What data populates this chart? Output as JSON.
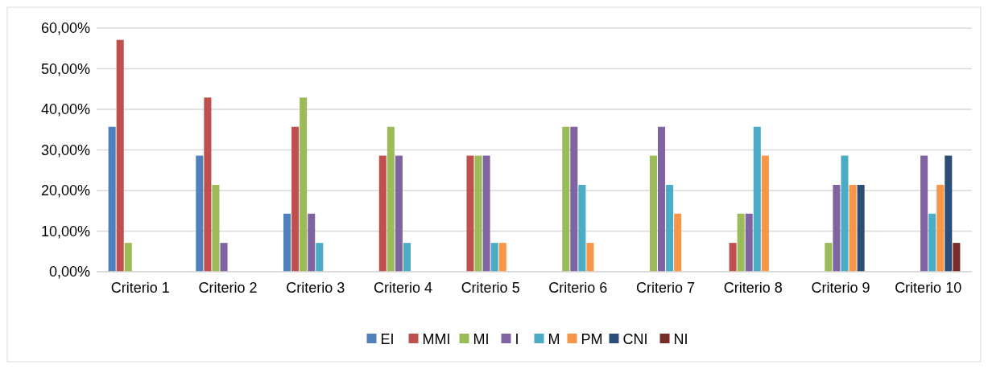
{
  "chart_data": {
    "type": "bar",
    "categories": [
      "Criterio 1",
      "Criterio 2",
      "Criterio 3",
      "Criterio 4",
      "Criterio 5",
      "Criterio 6",
      "Criterio 7",
      "Criterio 8",
      "Criterio 9",
      "Criterio 10"
    ],
    "series": [
      {
        "name": "EI",
        "color": "#4f81bd",
        "values": [
          35.7,
          28.6,
          14.3,
          null,
          null,
          null,
          null,
          null,
          null,
          null
        ]
      },
      {
        "name": "MMI",
        "color": "#c0504d",
        "values": [
          57.1,
          42.9,
          35.7,
          28.6,
          28.6,
          null,
          null,
          7.1,
          null,
          null
        ]
      },
      {
        "name": "MI",
        "color": "#9bbb59",
        "values": [
          7.1,
          21.4,
          42.9,
          35.7,
          28.6,
          35.7,
          28.6,
          14.3,
          7.1,
          null
        ]
      },
      {
        "name": "I",
        "color": "#8064a2",
        "values": [
          null,
          7.1,
          14.3,
          28.6,
          28.6,
          35.7,
          35.7,
          14.3,
          21.4,
          28.6
        ]
      },
      {
        "name": "M",
        "color": "#4bacc6",
        "values": [
          null,
          null,
          7.1,
          7.1,
          7.1,
          21.4,
          21.4,
          35.7,
          28.6,
          14.3
        ]
      },
      {
        "name": "PM",
        "color": "#f79646",
        "values": [
          null,
          null,
          null,
          null,
          7.1,
          7.1,
          14.3,
          28.6,
          21.4,
          21.4
        ]
      },
      {
        "name": "CNI",
        "color": "#2c4d75",
        "values": [
          null,
          null,
          null,
          null,
          null,
          null,
          null,
          null,
          21.4,
          28.6
        ]
      },
      {
        "name": "NI",
        "color": "#772c2a",
        "values": [
          null,
          null,
          null,
          null,
          null,
          null,
          null,
          null,
          null,
          7.1
        ]
      }
    ],
    "ylim": [
      0,
      60
    ],
    "yticks": [
      {
        "value": 0,
        "label": "0,00%"
      },
      {
        "value": 10,
        "label": "10,00%"
      },
      {
        "value": 20,
        "label": "20,00%"
      },
      {
        "value": 30,
        "label": "30,00%"
      },
      {
        "value": 40,
        "label": "40,00%"
      },
      {
        "value": 50,
        "label": "50,00%"
      },
      {
        "value": 60,
        "label": "60,00%"
      }
    ],
    "grid": "y",
    "legend": "bottom"
  }
}
